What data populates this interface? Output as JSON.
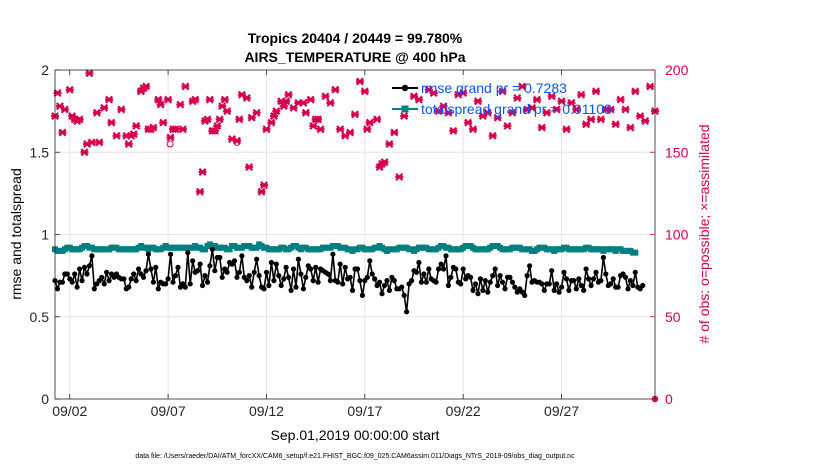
{
  "chart_data": {
    "type": "line",
    "title_line1": "Tropics 20404 / 20449 = 99.780%",
    "title_line2": "AIRS_TEMPERATURE @ 400 hPa",
    "xlabel": "Sep.01,2019 00:00:00 start",
    "ylabel_left": "rmse and totalspread",
    "ylabel_right": "# of obs: o=possible; ×=assimilated",
    "footer": "data file: /Users/raeder/DAI/ATM_forcXX/CAM6_setup/f.e21.FHIST_BGC.f09_025.CAM6assim.011/Diags_NTrS_2019-09/obs_diag_output.nc",
    "x_day_range": [
      0.25,
      30.75
    ],
    "xticks": [
      {
        "day": 1,
        "label": "09/02"
      },
      {
        "day": 6,
        "label": "09/07"
      },
      {
        "day": 11,
        "label": "09/12"
      },
      {
        "day": 16,
        "label": "09/17"
      },
      {
        "day": 21,
        "label": "09/22"
      },
      {
        "day": 26,
        "label": "09/27"
      }
    ],
    "ylim_left": [
      0,
      2
    ],
    "yticks_left": [
      {
        "value": 0,
        "label": "0"
      },
      {
        "value": 0.5,
        "label": "0.5"
      },
      {
        "value": 1,
        "label": "1"
      },
      {
        "value": 1.5,
        "label": "1.5"
      },
      {
        "value": 2,
        "label": "2"
      }
    ],
    "ylim_right": [
      0,
      200
    ],
    "yticks_right": [
      {
        "value": 0,
        "label": "0"
      },
      {
        "value": 50,
        "label": "50"
      },
      {
        "value": 100,
        "label": "100"
      },
      {
        "value": 150,
        "label": "150"
      },
      {
        "value": 200,
        "label": "200"
      }
    ],
    "grid": true,
    "legend": [
      {
        "name": "rmse grand pr = 0.7283",
        "color": "#000000"
      },
      {
        "name": "totalspread grand pr = 0.91108",
        "color": "#008080"
      }
    ],
    "colors": {
      "rmse": "#000000",
      "spread": "#008080",
      "obs": "#d6004f",
      "legend_text": "#0a55ff"
    },
    "time_start_day": 0.25,
    "time_step_days": 0.125,
    "rmse": [
      0.72,
      0.67,
      0.71,
      0.71,
      0.76,
      0.76,
      0.73,
      0.71,
      0.76,
      0.68,
      0.79,
      0.72,
      0.8,
      0.76,
      0.81,
      0.87,
      0.67,
      0.7,
      0.72,
      0.74,
      0.7,
      0.77,
      0.72,
      0.76,
      0.74,
      0.76,
      0.74,
      0.73,
      0.73,
      0.67,
      0.68,
      0.73,
      0.76,
      0.72,
      0.79,
      0.76,
      0.74,
      0.78,
      0.88,
      0.79,
      0.71,
      0.8,
      0.67,
      0.71,
      0.7,
      0.7,
      0.73,
      0.88,
      0.71,
      0.75,
      0.8,
      0.68,
      0.7,
      0.68,
      0.89,
      0.7,
      0.84,
      0.77,
      0.78,
      0.82,
      0.69,
      0.75,
      0.71,
      0.81,
      0.91,
      0.78,
      0.86,
      0.86,
      0.74,
      0.79,
      0.77,
      0.83,
      0.82,
      0.84,
      0.74,
      0.77,
      0.87,
      0.74,
      0.72,
      0.75,
      0.68,
      0.77,
      0.85,
      0.75,
      0.68,
      0.67,
      0.77,
      0.69,
      0.83,
      0.72,
      0.82,
      0.75,
      0.69,
      0.73,
      0.8,
      0.74,
      0.66,
      0.79,
      0.68,
      0.85,
      0.76,
      0.67,
      0.74,
      0.81,
      0.79,
      0.72,
      0.8,
      0.71,
      0.79,
      0.78,
      0.77,
      0.76,
      0.72,
      0.88,
      0.72,
      0.71,
      0.82,
      0.7,
      0.8,
      0.73,
      0.74,
      0.66,
      0.79,
      0.79,
      0.72,
      0.63,
      0.72,
      0.74,
      0.84,
      0.76,
      0.73,
      0.69,
      0.71,
      0.64,
      0.69,
      0.72,
      0.66,
      0.74,
      0.72,
      0.67,
      0.67,
      0.68,
      0.63,
      0.53,
      0.7,
      0.72,
      0.78,
      0.77,
      0.83,
      0.71,
      0.76,
      0.71,
      0.79,
      0.73,
      0.72,
      0.71,
      0.79,
      0.82,
      0.79,
      0.87,
      0.69,
      0.74,
      0.8,
      0.79,
      0.71,
      0.7,
      0.79,
      0.73,
      0.75,
      0.74,
      0.66,
      0.7,
      0.64,
      0.73,
      0.66,
      0.72,
      0.65,
      0.71,
      0.75,
      0.79,
      0.69,
      0.75,
      0.71,
      0.67,
      0.74,
      0.74,
      0.71,
      0.68,
      0.65,
      0.67,
      0.65,
      0.63,
      0.75,
      0.81,
      0.71,
      0.72,
      0.71,
      0.71,
      0.7,
      0.66,
      0.7,
      0.7,
      0.78,
      0.66,
      0.7,
      0.65,
      0.68,
      0.77,
      0.73,
      0.66,
      0.72,
      0.72,
      0.67,
      0.73,
      0.69,
      0.66,
      0.79,
      0.73,
      0.69,
      0.73,
      0.77,
      0.71,
      0.72,
      0.86,
      0.76,
      0.69,
      0.7,
      0.73,
      0.68,
      0.68,
      0.75,
      0.76,
      0.74,
      0.67,
      0.72,
      0.69,
      0.77,
      0.68,
      0.67,
      0.69
    ],
    "spread": [
      0.91,
      0.9,
      0.9,
      0.9,
      0.91,
      0.92,
      0.92,
      0.91,
      0.91,
      0.91,
      0.91,
      0.92,
      0.93,
      0.93,
      0.92,
      0.92,
      0.91,
      0.91,
      0.91,
      0.91,
      0.91,
      0.91,
      0.91,
      0.92,
      0.92,
      0.92,
      0.91,
      0.91,
      0.91,
      0.91,
      0.91,
      0.91,
      0.91,
      0.91,
      0.92,
      0.93,
      0.92,
      0.92,
      0.91,
      0.92,
      0.92,
      0.91,
      0.91,
      0.91,
      0.92,
      0.93,
      0.92,
      0.92,
      0.92,
      0.92,
      0.92,
      0.92,
      0.92,
      0.92,
      0.92,
      0.92,
      0.92,
      0.93,
      0.92,
      0.92,
      0.91,
      0.91,
      0.93,
      0.94,
      0.93,
      0.93,
      0.92,
      0.92,
      0.92,
      0.92,
      0.91,
      0.91,
      0.93,
      0.93,
      0.92,
      0.92,
      0.92,
      0.93,
      0.93,
      0.93,
      0.92,
      0.92,
      0.92,
      0.94,
      0.93,
      0.92,
      0.92,
      0.91,
      0.91,
      0.91,
      0.91,
      0.91,
      0.92,
      0.92,
      0.91,
      0.91,
      0.92,
      0.93,
      0.93,
      0.92,
      0.91,
      0.92,
      0.92,
      0.91,
      0.91,
      0.91,
      0.91,
      0.91,
      0.91,
      0.92,
      0.92,
      0.92,
      0.92,
      0.93,
      0.93,
      0.93,
      0.92,
      0.92,
      0.92,
      0.91,
      0.91,
      0.9,
      0.91,
      0.91,
      0.92,
      0.92,
      0.91,
      0.91,
      0.91,
      0.91,
      0.92,
      0.92,
      0.93,
      0.92,
      0.91,
      0.9,
      0.91,
      0.91,
      0.91,
      0.91,
      0.92,
      0.92,
      0.92,
      0.92,
      0.91,
      0.91,
      0.9,
      0.91,
      0.92,
      0.92,
      0.92,
      0.92,
      0.91,
      0.91,
      0.91,
      0.91,
      0.92,
      0.93,
      0.93,
      0.92,
      0.92,
      0.91,
      0.91,
      0.91,
      0.91,
      0.91,
      0.92,
      0.93,
      0.93,
      0.93,
      0.92,
      0.91,
      0.91,
      0.91,
      0.91,
      0.91,
      0.91,
      0.92,
      0.93,
      0.93,
      0.93,
      0.92,
      0.91,
      0.91,
      0.91,
      0.91,
      0.92,
      0.92,
      0.92,
      0.92,
      0.91,
      0.91,
      0.91,
      0.91,
      0.9,
      0.9,
      0.91,
      0.92,
      0.92,
      0.92,
      0.91,
      0.91,
      0.91,
      0.9,
      0.91,
      0.91,
      0.91,
      0.92,
      0.92,
      0.91,
      0.91,
      0.91,
      0.91,
      0.91,
      0.91,
      0.91,
      0.92,
      0.92,
      0.91,
      0.91,
      0.91,
      0.91,
      0.91,
      0.9,
      0.91,
      0.91,
      0.91,
      0.91,
      0.9,
      0.91,
      0.91,
      0.9,
      0.9,
      0.9,
      0.9,
      0.89,
      0.89
    ],
    "obs_possible": [
      {
        "day": 6.1,
        "value": 155
      },
      {
        "day": 9.5,
        "value": 156
      }
    ],
    "obs_assimilated": [
      {
        "day": 0.25,
        "value": 172
      },
      {
        "day": 0.38,
        "value": 186
      },
      {
        "day": 0.5,
        "value": 178
      },
      {
        "day": 0.63,
        "value": 162
      },
      {
        "day": 0.75,
        "value": 176
      },
      {
        "day": 1.0,
        "value": 188
      },
      {
        "day": 1.12,
        "value": 172
      },
      {
        "day": 1.25,
        "value": 170
      },
      {
        "day": 1.38,
        "value": 169
      },
      {
        "day": 1.5,
        "value": 170
      },
      {
        "day": 1.75,
        "value": 150
      },
      {
        "day": 1.88,
        "value": 155
      },
      {
        "day": 2.0,
        "value": 198
      },
      {
        "day": 2.12,
        "value": 156
      },
      {
        "day": 2.38,
        "value": 174
      },
      {
        "day": 2.5,
        "value": 156
      },
      {
        "day": 2.75,
        "value": 177
      },
      {
        "day": 3.0,
        "value": 182
      },
      {
        "day": 3.12,
        "value": 168
      },
      {
        "day": 3.38,
        "value": 160
      },
      {
        "day": 3.62,
        "value": 176
      },
      {
        "day": 3.88,
        "value": 160
      },
      {
        "day": 4.0,
        "value": 155
      },
      {
        "day": 4.12,
        "value": 160
      },
      {
        "day": 4.25,
        "value": 161
      },
      {
        "day": 4.38,
        "value": 166
      },
      {
        "day": 4.62,
        "value": 187
      },
      {
        "day": 4.75,
        "value": 189
      },
      {
        "day": 4.88,
        "value": 190
      },
      {
        "day": 5.0,
        "value": 164
      },
      {
        "day": 5.12,
        "value": 164
      },
      {
        "day": 5.25,
        "value": 165
      },
      {
        "day": 5.5,
        "value": 182
      },
      {
        "day": 5.62,
        "value": 179
      },
      {
        "day": 5.75,
        "value": 168
      },
      {
        "day": 6.0,
        "value": 182
      },
      {
        "day": 6.12,
        "value": 159
      },
      {
        "day": 6.25,
        "value": 164
      },
      {
        "day": 6.38,
        "value": 164
      },
      {
        "day": 6.62,
        "value": 179
      },
      {
        "day": 6.75,
        "value": 164
      },
      {
        "day": 6.88,
        "value": 190
      },
      {
        "day": 7.25,
        "value": 181
      },
      {
        "day": 7.38,
        "value": 182
      },
      {
        "day": 7.62,
        "value": 126
      },
      {
        "day": 7.75,
        "value": 138
      },
      {
        "day": 7.88,
        "value": 169
      },
      {
        "day": 8.0,
        "value": 170
      },
      {
        "day": 8.12,
        "value": 182
      },
      {
        "day": 8.25,
        "value": 163
      },
      {
        "day": 8.38,
        "value": 163
      },
      {
        "day": 8.5,
        "value": 166
      },
      {
        "day": 8.62,
        "value": 170
      },
      {
        "day": 8.75,
        "value": 178
      },
      {
        "day": 8.88,
        "value": 182
      },
      {
        "day": 9.0,
        "value": 175
      },
      {
        "day": 9.25,
        "value": 158
      },
      {
        "day": 9.5,
        "value": 157
      },
      {
        "day": 9.62,
        "value": 170
      },
      {
        "day": 9.75,
        "value": 185
      },
      {
        "day": 10.0,
        "value": 183
      },
      {
        "day": 10.12,
        "value": 141
      },
      {
        "day": 10.25,
        "value": 171
      },
      {
        "day": 10.5,
        "value": 174
      },
      {
        "day": 10.75,
        "value": 126
      },
      {
        "day": 10.88,
        "value": 130
      },
      {
        "day": 11.0,
        "value": 164
      },
      {
        "day": 11.25,
        "value": 168
      },
      {
        "day": 11.38,
        "value": 172
      },
      {
        "day": 11.5,
        "value": 175
      },
      {
        "day": 11.75,
        "value": 181
      },
      {
        "day": 11.88,
        "value": 178
      },
      {
        "day": 12.0,
        "value": 181
      },
      {
        "day": 12.12,
        "value": 185
      },
      {
        "day": 12.38,
        "value": 177
      },
      {
        "day": 12.62,
        "value": 180
      },
      {
        "day": 12.88,
        "value": 180
      },
      {
        "day": 13.0,
        "value": 174
      },
      {
        "day": 13.25,
        "value": 182
      },
      {
        "day": 13.38,
        "value": 166
      },
      {
        "day": 13.5,
        "value": 170
      },
      {
        "day": 13.62,
        "value": 170
      },
      {
        "day": 13.75,
        "value": 164
      },
      {
        "day": 14.0,
        "value": 184
      },
      {
        "day": 14.25,
        "value": 180
      },
      {
        "day": 14.5,
        "value": 188
      },
      {
        "day": 14.75,
        "value": 164
      },
      {
        "day": 15.0,
        "value": 160
      },
      {
        "day": 15.25,
        "value": 162
      },
      {
        "day": 15.5,
        "value": 173
      },
      {
        "day": 15.75,
        "value": 193
      },
      {
        "day": 16.0,
        "value": 187
      },
      {
        "day": 16.12,
        "value": 164
      },
      {
        "day": 16.25,
        "value": 168
      },
      {
        "day": 16.62,
        "value": 170
      },
      {
        "day": 16.75,
        "value": 141
      },
      {
        "day": 16.88,
        "value": 143
      },
      {
        "day": 17.0,
        "value": 144
      },
      {
        "day": 17.25,
        "value": 155
      },
      {
        "day": 17.5,
        "value": 162
      },
      {
        "day": 17.75,
        "value": 135
      },
      {
        "day": 18.0,
        "value": 172
      },
      {
        "day": 18.5,
        "value": 184
      },
      {
        "day": 18.75,
        "value": 182
      },
      {
        "day": 19.25,
        "value": 188
      },
      {
        "day": 19.5,
        "value": 186
      },
      {
        "day": 19.75,
        "value": 175
      },
      {
        "day": 20.0,
        "value": 178
      },
      {
        "day": 20.25,
        "value": 174
      },
      {
        "day": 20.5,
        "value": 163
      },
      {
        "day": 20.75,
        "value": 185
      },
      {
        "day": 21.0,
        "value": 186
      },
      {
        "day": 21.25,
        "value": 168
      },
      {
        "day": 21.5,
        "value": 164
      },
      {
        "day": 21.75,
        "value": 181
      },
      {
        "day": 22.0,
        "value": 172
      },
      {
        "day": 22.25,
        "value": 174
      },
      {
        "day": 22.5,
        "value": 160
      },
      {
        "day": 22.75,
        "value": 171
      },
      {
        "day": 23.0,
        "value": 187
      },
      {
        "day": 23.25,
        "value": 166
      },
      {
        "day": 23.5,
        "value": 174
      },
      {
        "day": 23.75,
        "value": 183
      },
      {
        "day": 24.0,
        "value": 190
      },
      {
        "day": 24.25,
        "value": 176
      },
      {
        "day": 24.5,
        "value": 177
      },
      {
        "day": 24.75,
        "value": 182
      },
      {
        "day": 25.0,
        "value": 165
      },
      {
        "day": 25.25,
        "value": 174
      },
      {
        "day": 25.5,
        "value": 184
      },
      {
        "day": 25.75,
        "value": 176
      },
      {
        "day": 26.0,
        "value": 181
      },
      {
        "day": 26.25,
        "value": 164
      },
      {
        "day": 26.5,
        "value": 180
      },
      {
        "day": 26.75,
        "value": 176
      },
      {
        "day": 27.0,
        "value": 185
      },
      {
        "day": 27.25,
        "value": 167
      },
      {
        "day": 27.5,
        "value": 170
      },
      {
        "day": 27.75,
        "value": 187
      },
      {
        "day": 28.0,
        "value": 170
      },
      {
        "day": 28.25,
        "value": 176
      },
      {
        "day": 28.5,
        "value": 176
      },
      {
        "day": 28.75,
        "value": 167
      },
      {
        "day": 29.0,
        "value": 182
      },
      {
        "day": 29.25,
        "value": 176
      },
      {
        "day": 29.5,
        "value": 165
      },
      {
        "day": 29.75,
        "value": 187
      },
      {
        "day": 30.0,
        "value": 172
      },
      {
        "day": 30.25,
        "value": 169
      },
      {
        "day": 30.5,
        "value": 190
      },
      {
        "day": 30.75,
        "value": 175
      }
    ]
  }
}
